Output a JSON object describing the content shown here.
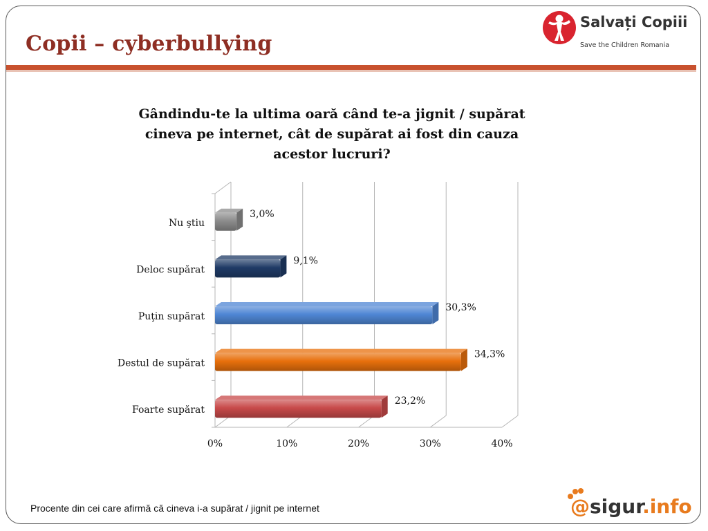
{
  "slide": {
    "title": "Copii – cyberbullying",
    "footnote": "Procente din cei care afirmă că cineva i-a supărat / jignit pe internet"
  },
  "brand": {
    "name": "Salvați Copiii",
    "subtitle": "Save the Children Romania",
    "icon": "child-figure-icon",
    "color": "#d9242f"
  },
  "partner_logo": {
    "at": "@",
    "name": "sigur",
    "tld": ".info",
    "icon": "paw-icon"
  },
  "chart_data": {
    "type": "bar",
    "orientation": "horizontal",
    "title": "Gândindu-te la ultima oară când te-a jignit / supărat cineva  pe internet, cât de supărat ai fost din cauza acestor lucruri?",
    "title_lines": [
      "Gândindu-te la ultima oară când te-a jignit / supărat",
      "cineva  pe internet, cât de supărat ai fost din cauza",
      "acestor lucruri?"
    ],
    "categories": [
      "Nu ştiu",
      "Deloc supărat",
      "Puţin supărat",
      "Destul de supărat",
      "Foarte supărat"
    ],
    "values": [
      3.0,
      9.1,
      30.3,
      34.3,
      23.2
    ],
    "value_labels": [
      "3,0%",
      "9,1%",
      "30,3%",
      "34,3%",
      "23,2%"
    ],
    "colors": [
      "#8c8c8c",
      "#1f3b66",
      "#4f86d4",
      "#e8700c",
      "#c84a4a"
    ],
    "xlim": [
      0,
      40
    ],
    "x_ticks": [
      0,
      10,
      20,
      30,
      40
    ],
    "x_tick_labels": [
      "0%",
      "10%",
      "20%",
      "30%",
      "40%"
    ],
    "grid": true,
    "legend": "none",
    "style": "3d"
  }
}
